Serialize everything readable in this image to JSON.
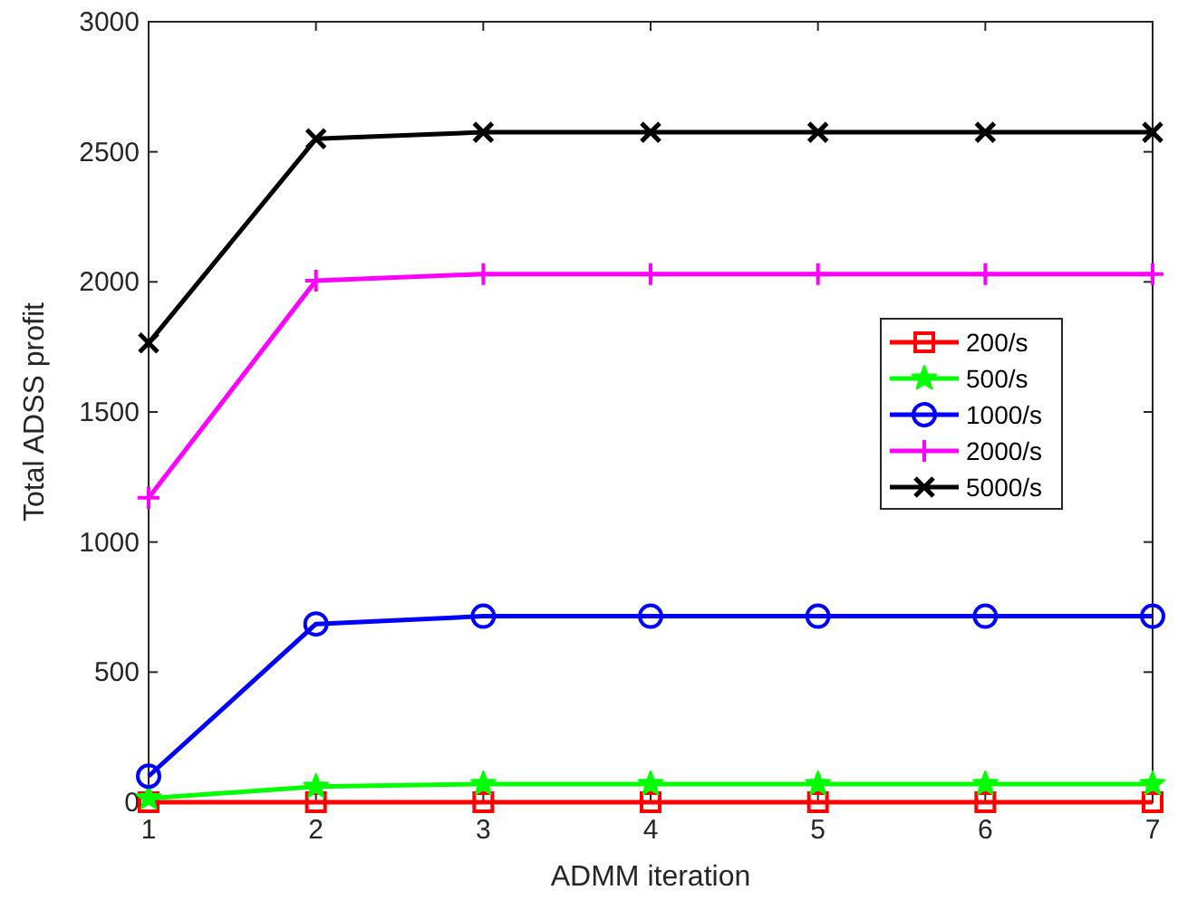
{
  "chart_data": {
    "type": "line",
    "xlabel": "ADMM iteration",
    "ylabel": "Total ADSS profit",
    "x": [
      1,
      2,
      3,
      4,
      5,
      6,
      7
    ],
    "xlim": [
      1,
      7
    ],
    "xticks": [
      1,
      2,
      3,
      4,
      5,
      6,
      7
    ],
    "ylim": [
      0,
      3000
    ],
    "yticks": [
      0,
      500,
      1000,
      1500,
      2000,
      2500,
      3000
    ],
    "grid": false,
    "legend": "right",
    "line_style": "solid",
    "series": [
      {
        "name": "200/s",
        "color": "#ff0000",
        "marker": "square",
        "values": [
          0,
          0,
          0,
          0,
          0,
          0,
          0
        ]
      },
      {
        "name": "500/s",
        "color": "#00ff00",
        "marker": "star",
        "values": [
          15,
          60,
          70,
          70,
          70,
          70,
          70
        ]
      },
      {
        "name": "1000/s",
        "color": "#0000ff",
        "marker": "circle",
        "values": [
          100,
          685,
          715,
          715,
          715,
          715,
          715
        ]
      },
      {
        "name": "2000/s",
        "color": "#ff00ff",
        "marker": "plus",
        "values": [
          1170,
          2005,
          2030,
          2030,
          2030,
          2030,
          2030
        ]
      },
      {
        "name": "5000/s",
        "color": "#000000",
        "marker": "cross",
        "values": [
          1765,
          2550,
          2575,
          2575,
          2575,
          2575,
          2575
        ]
      }
    ]
  }
}
